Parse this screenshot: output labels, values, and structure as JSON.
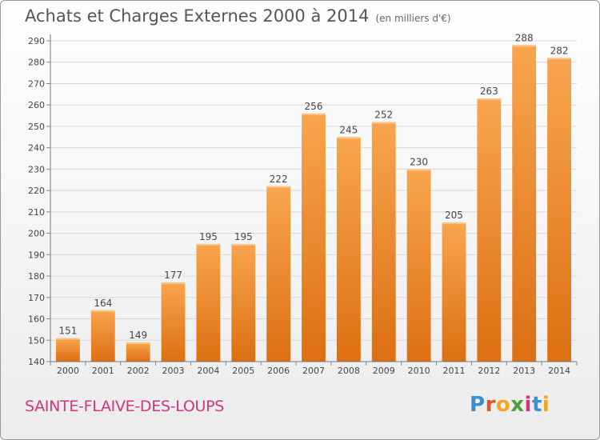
{
  "header": {
    "title": "Achats et Charges Externes 2000 à 2014",
    "unit": "(en milliers d'€)"
  },
  "footer": {
    "town": "SAINTE-FLAIVE-DES-LOUPS",
    "logo_letters": [
      "P",
      "r",
      "o",
      "x",
      "i",
      "t",
      "i"
    ],
    "logo_colors": [
      "#3a8fd0",
      "#e8502a",
      "#f3a51d",
      "#4aa03a",
      "#d0367c",
      "#3a8fd0",
      "#f3a51d"
    ]
  },
  "chart_data": {
    "type": "bar",
    "title": "Achats et Charges Externes 2000 à 2014",
    "subtitle": "(en milliers d'€)",
    "categories": [
      "2000",
      "2001",
      "2002",
      "2003",
      "2004",
      "2005",
      "2006",
      "2007",
      "2008",
      "2009",
      "2010",
      "2011",
      "2012",
      "2013",
      "2014"
    ],
    "values": [
      151,
      164,
      149,
      177,
      195,
      195,
      222,
      256,
      245,
      252,
      230,
      205,
      263,
      288,
      282
    ],
    "ylim": [
      140,
      290
    ],
    "yticks": [
      140,
      150,
      160,
      170,
      180,
      190,
      200,
      210,
      220,
      230,
      240,
      250,
      260,
      270,
      280,
      290
    ],
    "grid": true,
    "bar_color": "#f08a24"
  }
}
